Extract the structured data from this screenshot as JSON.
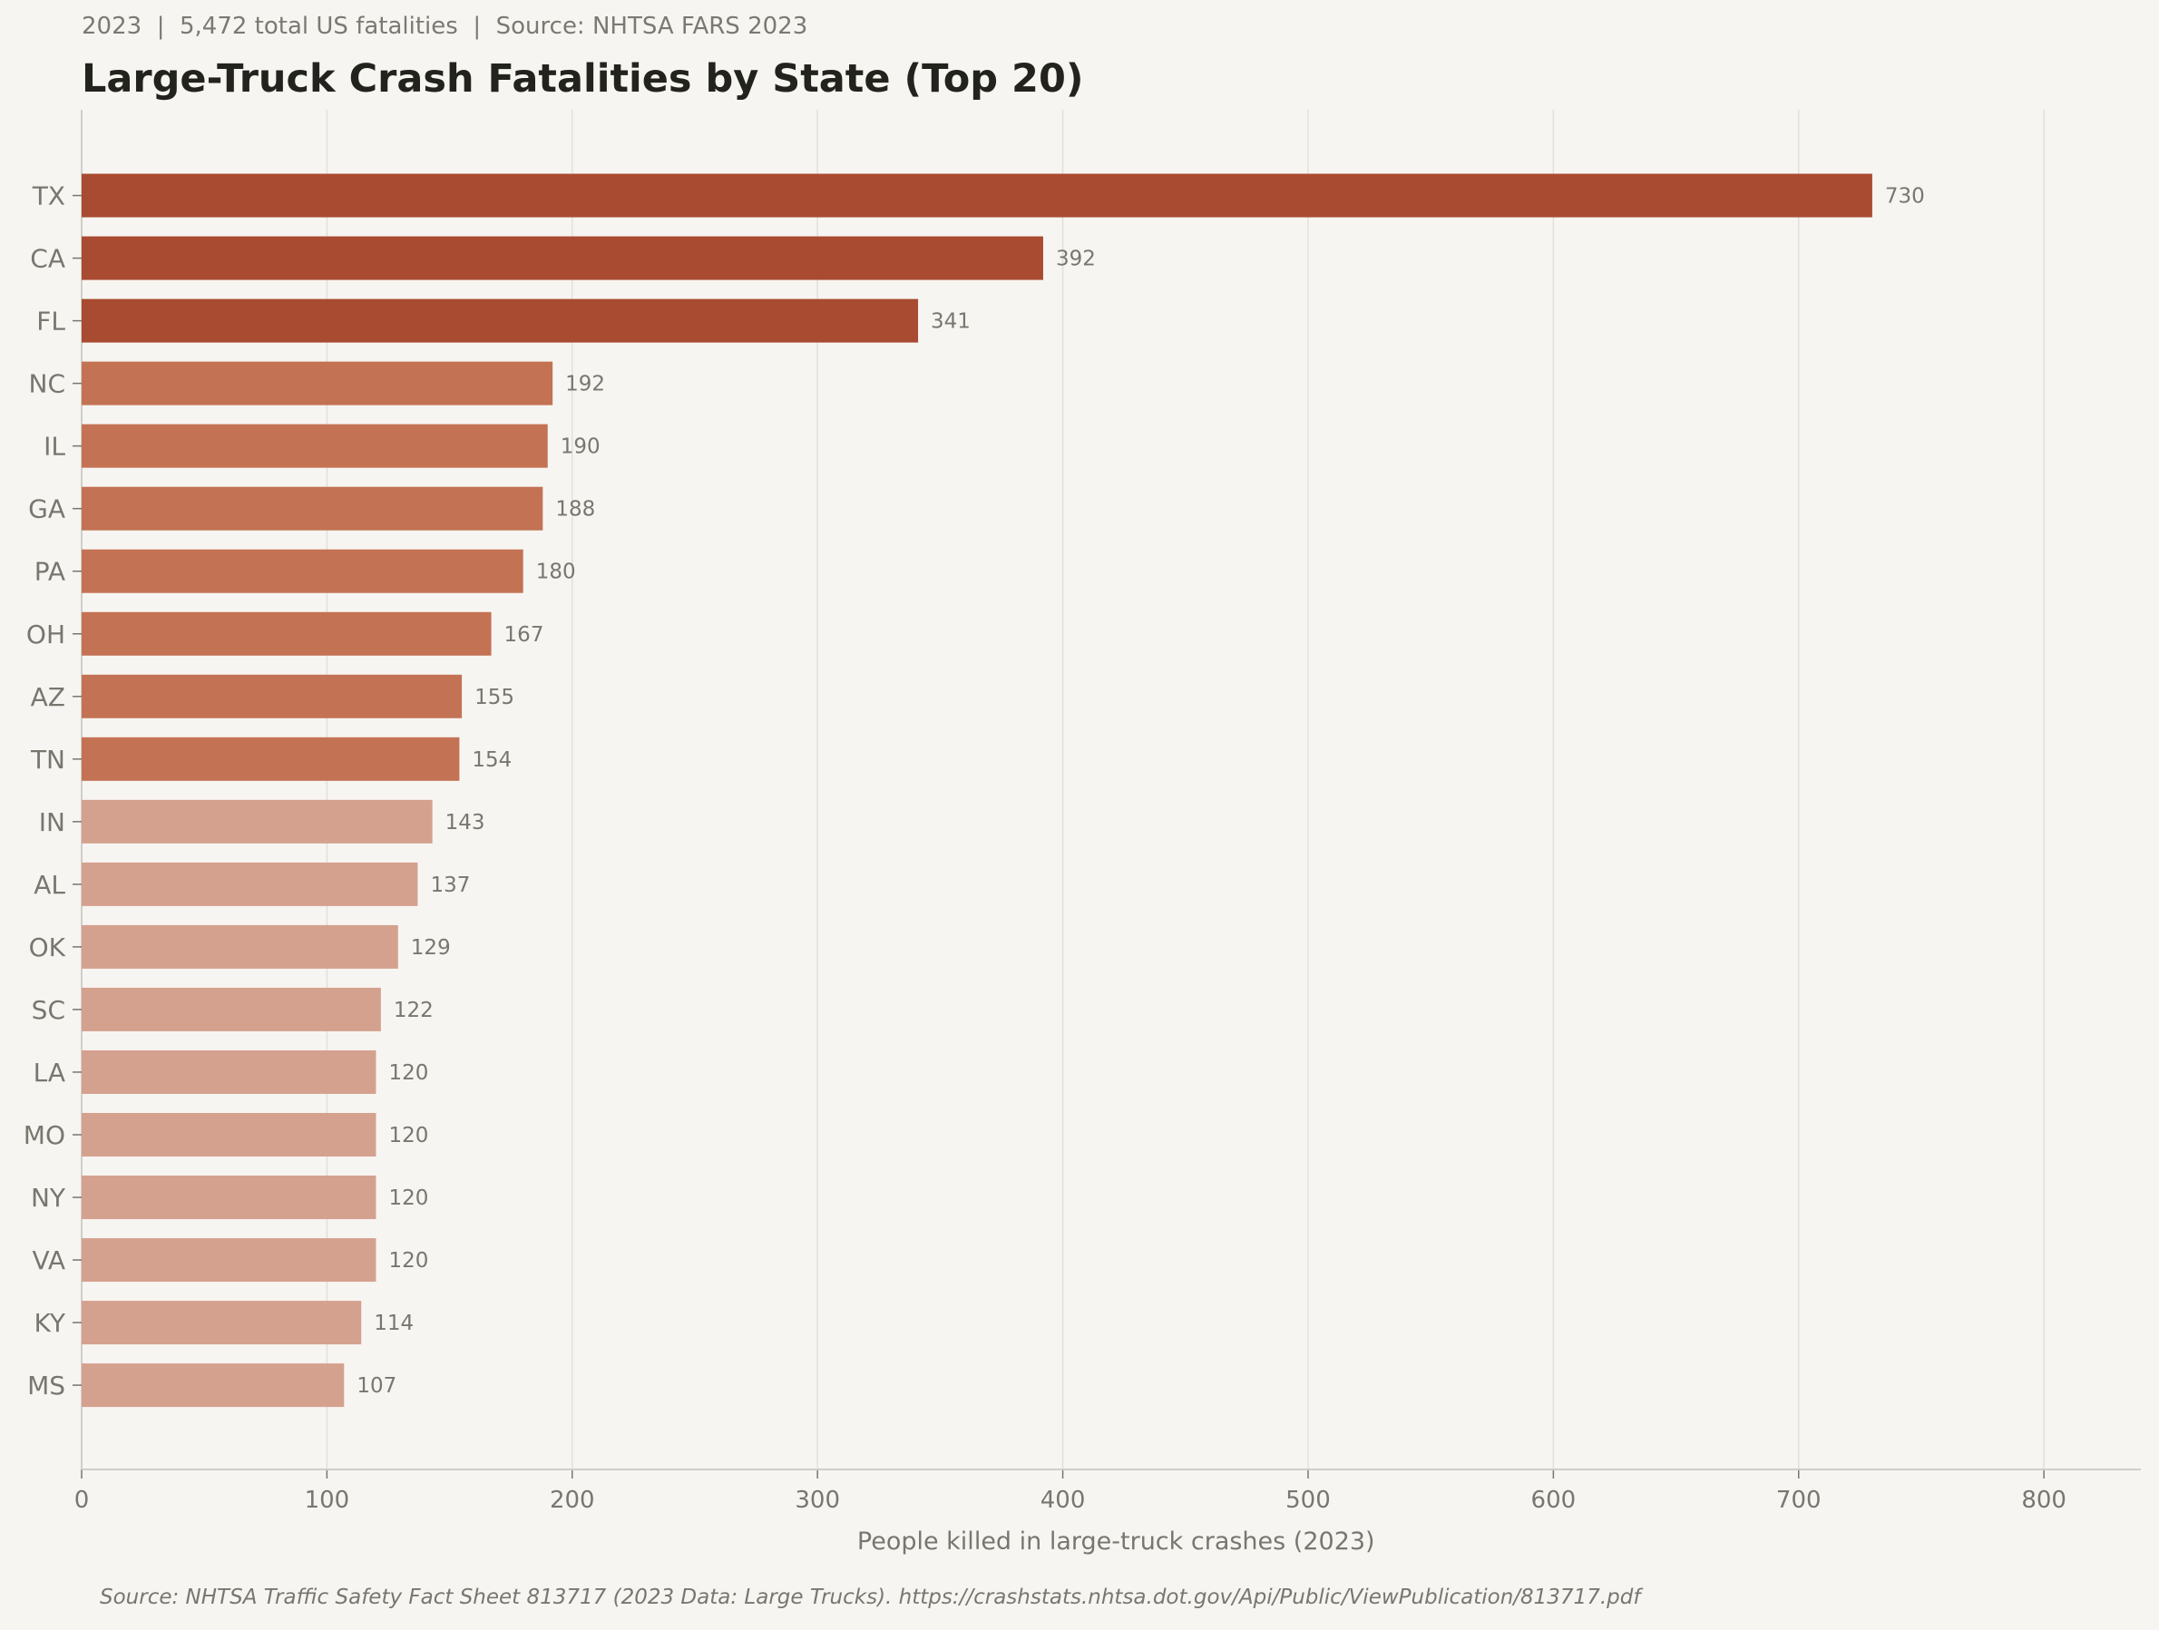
{
  "header": {
    "subtitle": "2023  |  5,472 total US fatalities  |  Source: NHTSA FARS 2023",
    "title": "Large-Truck Crash Fatalities by State (Top 20)"
  },
  "footer": {
    "source": "Source: NHTSA Traffic Safety Fact Sheet 813717 (2023 Data: Large Trucks). https://crashstats.nhtsa.dot.gov/Api/Public/ViewPublication/813717.pdf"
  },
  "chart_data": {
    "type": "bar",
    "orientation": "horizontal",
    "title": "Large-Truck Crash Fatalities by State (Top 20)",
    "xlabel": "People killed in large-truck crashes (2023)",
    "ylabel": "",
    "xlim": [
      0,
      840
    ],
    "xticks": [
      0,
      100,
      200,
      300,
      400,
      500,
      600,
      700,
      800
    ],
    "grid": "vertical",
    "categories": [
      "TX",
      "CA",
      "FL",
      "NC",
      "IL",
      "GA",
      "PA",
      "OH",
      "AZ",
      "TN",
      "IN",
      "AL",
      "OK",
      "SC",
      "LA",
      "MO",
      "NY",
      "VA",
      "KY",
      "MS"
    ],
    "values": [
      730,
      392,
      341,
      192,
      190,
      188,
      180,
      167,
      155,
      154,
      143,
      137,
      129,
      122,
      120,
      120,
      120,
      120,
      114,
      107
    ],
    "colors": {
      "top3": "#A84B30",
      "rank4to10": "#C37254",
      "rank11to20": "#D5A18F",
      "background": "#F7F5F1",
      "grid": "#E2E0DB"
    }
  }
}
